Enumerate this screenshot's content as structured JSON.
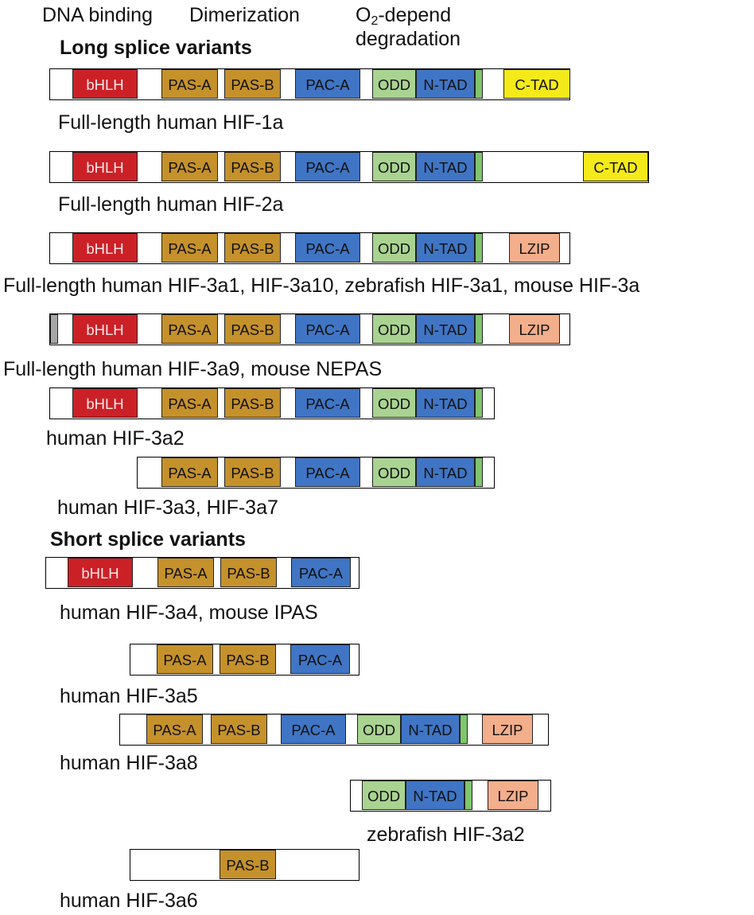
{
  "header": {
    "dna_binding": "DNA binding",
    "dimerization": "Dimerization",
    "o2_prefix": "O",
    "o2_sub": "2",
    "o2_suffix": "-depend",
    "degradation": "degradation"
  },
  "sections": {
    "long": "Long splice variants",
    "short": "Short splice variants"
  },
  "domain_labels": {
    "bHLH": "bHLH",
    "PASA": "PAS-A",
    "PASB": "PAS-B",
    "PACA": "PAC-A",
    "ODD": "ODD",
    "NTAD": "N-TAD",
    "CTAD": "C-TAD",
    "LZIP": "LZIP"
  },
  "colors": {
    "bHLH": "#cc2027",
    "PAS": "#c5912b",
    "PAC": "#3f75c4",
    "ODD": "#a9d390",
    "NTAD": "#3f75c4",
    "CTAD": "#f4ea1a",
    "LZIP": "#f3ae8b",
    "green_strip": "#7fc66d",
    "grey_block": "#a6a6a6"
  },
  "variants": [
    {
      "caption": "Full-length human HIF-1a",
      "domains": [
        "bHLH",
        "PASA",
        "PASB",
        "PACA",
        "ODD",
        "NTAD",
        "green",
        "CTAD"
      ]
    },
    {
      "caption": "Full-length human HIF-2a",
      "domains": [
        "bHLH",
        "PASA",
        "PASB",
        "PACA",
        "ODD",
        "NTAD",
        "green",
        "CTAD"
      ]
    },
    {
      "caption": "Full-length human HIF-3a1, HIF-3a10, zebrafish HIF-3a1, mouse HIF-3a",
      "domains": [
        "bHLH",
        "PASA",
        "PASB",
        "PACA",
        "ODD",
        "NTAD",
        "green",
        "LZIP"
      ]
    },
    {
      "caption": "Full-length human HIF-3a9, mouse NEPAS",
      "domains": [
        "grey",
        "bHLH",
        "PASA",
        "PASB",
        "PACA",
        "ODD",
        "NTAD",
        "green",
        "LZIP"
      ]
    },
    {
      "caption": "human HIF-3a2",
      "domains": [
        "bHLH",
        "PASA",
        "PASB",
        "PACA",
        "ODD",
        "NTAD",
        "green"
      ]
    },
    {
      "caption": "human HIF-3a3, HIF-3a7",
      "domains": [
        "PASA",
        "PASB",
        "PACA",
        "ODD",
        "NTAD",
        "green"
      ]
    },
    {
      "caption": "human HIF-3a4, mouse IPAS",
      "domains": [
        "bHLH",
        "PASA",
        "PASB",
        "PACA"
      ]
    },
    {
      "caption": "human HIF-3a5",
      "domains": [
        "PASA",
        "PASB",
        "PACA"
      ]
    },
    {
      "caption": "human HIF-3a8",
      "domains": [
        "PASA",
        "PASB",
        "PACA",
        "ODD",
        "NTAD",
        "green",
        "LZIP"
      ]
    },
    {
      "caption": "zebrafish HIF-3a2",
      "domains": [
        "ODD",
        "NTAD",
        "green",
        "LZIP"
      ]
    },
    {
      "caption": "human HIF-3a6",
      "domains": [
        "PASB"
      ]
    }
  ]
}
